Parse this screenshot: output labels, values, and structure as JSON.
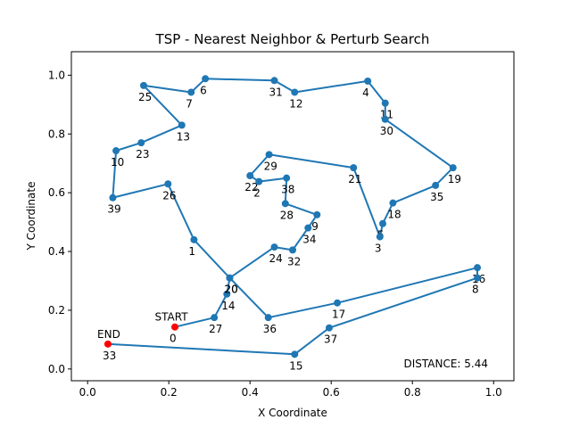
{
  "chart_data": {
    "type": "line",
    "title": "TSP - Nearest Neighbor & Perturb Search",
    "xlabel": "X Coordinate",
    "ylabel": "Y Coordinate",
    "xlim": [
      -0.04,
      1.05
    ],
    "ylim": [
      -0.04,
      1.08
    ],
    "xticks": [
      "0.0",
      "0.2",
      "0.4",
      "0.6",
      "0.8",
      "1.0"
    ],
    "yticks": [
      "0.0",
      "0.2",
      "0.4",
      "0.6",
      "0.8",
      "1.0"
    ],
    "grid": false,
    "colors": {
      "route": "#1f77b4",
      "endpoints": "#ff0000"
    },
    "start_label": "START",
    "end_label": "END",
    "distance_text": "DISTANCE: 5.44",
    "route": [
      {
        "label": "0",
        "x": 0.215,
        "y": 0.143
      },
      {
        "label": "27",
        "x": 0.312,
        "y": 0.175
      },
      {
        "label": "14",
        "x": 0.343,
        "y": 0.255
      },
      {
        "label": "20",
        "x": 0.35,
        "y": 0.31
      },
      {
        "label": "1",
        "x": 0.262,
        "y": 0.44
      },
      {
        "label": "26",
        "x": 0.198,
        "y": 0.63
      },
      {
        "label": "39",
        "x": 0.062,
        "y": 0.583
      },
      {
        "label": "10",
        "x": 0.07,
        "y": 0.743
      },
      {
        "label": "23",
        "x": 0.132,
        "y": 0.77
      },
      {
        "label": "13",
        "x": 0.232,
        "y": 0.83
      },
      {
        "label": "25",
        "x": 0.138,
        "y": 0.965
      },
      {
        "label": "7",
        "x": 0.255,
        "y": 0.942
      },
      {
        "label": "6",
        "x": 0.29,
        "y": 0.988
      },
      {
        "label": "31",
        "x": 0.46,
        "y": 0.982
      },
      {
        "label": "12",
        "x": 0.51,
        "y": 0.942
      },
      {
        "label": "4",
        "x": 0.69,
        "y": 0.98
      },
      {
        "label": "11",
        "x": 0.733,
        "y": 0.905
      },
      {
        "label": "30",
        "x": 0.733,
        "y": 0.85
      },
      {
        "label": "19",
        "x": 0.9,
        "y": 0.685
      },
      {
        "label": "35",
        "x": 0.857,
        "y": 0.625
      },
      {
        "label": "18",
        "x": 0.752,
        "y": 0.565
      },
      {
        "label": "5",
        "x": 0.727,
        "y": 0.495
      },
      {
        "label": "3",
        "x": 0.72,
        "y": 0.45
      },
      {
        "label": "21",
        "x": 0.655,
        "y": 0.685
      },
      {
        "label": "29",
        "x": 0.447,
        "y": 0.73
      },
      {
        "label": "22",
        "x": 0.4,
        "y": 0.658
      },
      {
        "label": "2",
        "x": 0.422,
        "y": 0.638
      },
      {
        "label": "38",
        "x": 0.49,
        "y": 0.65
      },
      {
        "label": "28",
        "x": 0.487,
        "y": 0.563
      },
      {
        "label": "9",
        "x": 0.565,
        "y": 0.525
      },
      {
        "label": "34",
        "x": 0.543,
        "y": 0.48
      },
      {
        "label": "32",
        "x": 0.505,
        "y": 0.405
      },
      {
        "label": "24",
        "x": 0.46,
        "y": 0.415
      },
      {
        "label": "20",
        "x": 0.35,
        "y": 0.31
      },
      {
        "label": "36",
        "x": 0.445,
        "y": 0.175
      },
      {
        "label": "17",
        "x": 0.615,
        "y": 0.225
      },
      {
        "label": "16",
        "x": 0.96,
        "y": 0.345
      },
      {
        "label": "8",
        "x": 0.96,
        "y": 0.31
      },
      {
        "label": "37",
        "x": 0.595,
        "y": 0.14
      },
      {
        "label": "15",
        "x": 0.51,
        "y": 0.05
      },
      {
        "label": "33",
        "x": 0.05,
        "y": 0.085
      }
    ]
  }
}
